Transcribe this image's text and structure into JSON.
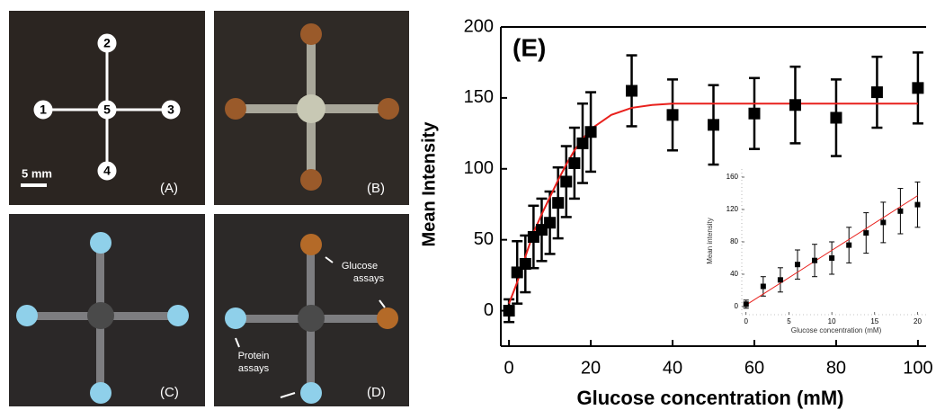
{
  "panels": [
    {
      "label": "(A)",
      "numbers": [
        "1",
        "2",
        "3",
        "4",
        "5"
      ],
      "scale": "5 mm"
    },
    {
      "label": "(B)"
    },
    {
      "label": "(C)"
    },
    {
      "label": "(D)",
      "annotations": [
        [
          "Glucose",
          "assays"
        ],
        [
          "Protein",
          "assays"
        ]
      ]
    }
  ],
  "chart_data": [
    {
      "type": "scatter",
      "title": "(E)",
      "x_label": "Glucose concentration (mM)",
      "y_label": "Mean Intensity",
      "xlim": [
        -2,
        102
      ],
      "ylim": [
        -25,
        200
      ],
      "xticks": [
        0,
        20,
        40,
        60,
        80,
        100
      ],
      "yticks": [
        0,
        50,
        100,
        150,
        200
      ],
      "series": [
        {
          "color": "#000000",
          "x": [
            0,
            2,
            4,
            6,
            8,
            10,
            12,
            14,
            16,
            18,
            20,
            30,
            40,
            50,
            60,
            70,
            80,
            90,
            100
          ],
          "values": [
            0,
            27,
            33,
            52,
            57,
            62,
            76,
            91,
            104,
            118,
            126,
            155,
            138,
            131,
            139,
            145,
            136,
            154,
            157
          ],
          "errors": [
            8,
            22,
            20,
            22,
            22,
            22,
            25,
            25,
            25,
            28,
            28,
            25,
            25,
            28,
            25,
            27,
            27,
            25,
            25
          ]
        }
      ],
      "fit": {
        "color": "#e8201c",
        "x": [
          0,
          2,
          4,
          6,
          8,
          10,
          12,
          14,
          16,
          18,
          20,
          25,
          30,
          35,
          40,
          50,
          60,
          70,
          80,
          90,
          100
        ],
        "values": [
          5,
          20,
          38,
          55,
          68,
          80,
          92,
          103,
          113,
          121,
          128,
          138,
          143,
          145,
          146,
          146,
          146,
          146,
          146,
          146,
          146
        ]
      }
    },
    {
      "type": "scatter",
      "x_label": "Glucose concentration (mM)",
      "y_label": "Mean intensity",
      "xlim": [
        -0.5,
        21
      ],
      "ylim": [
        -10,
        170
      ],
      "xticks": [
        0,
        5,
        10,
        15,
        20
      ],
      "yticks": [
        0,
        40,
        80,
        120,
        160
      ],
      "series": [
        {
          "color": "#000000",
          "x": [
            0,
            2,
            4,
            6,
            8,
            10,
            12,
            14,
            16,
            18,
            20
          ],
          "values": [
            3,
            25,
            33,
            52,
            57,
            60,
            76,
            91,
            104,
            118,
            126
          ],
          "errors": [
            5,
            12,
            15,
            18,
            20,
            20,
            22,
            25,
            25,
            28,
            28
          ]
        }
      ],
      "fit": {
        "color": "#e8201c",
        "x": [
          0,
          20
        ],
        "values": [
          2,
          137
        ]
      }
    }
  ]
}
